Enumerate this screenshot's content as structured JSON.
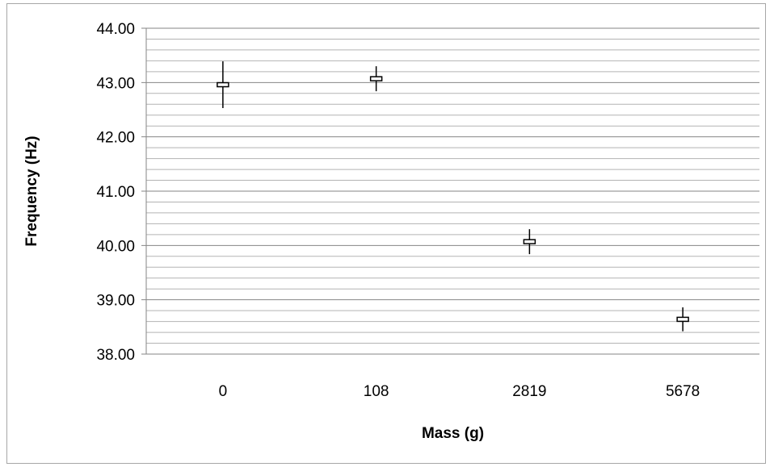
{
  "chart_data": {
    "type": "scatter",
    "title": "",
    "xlabel": "Mass (g)",
    "ylabel": "Frequency (Hz)",
    "categories": [
      "0",
      "108",
      "2819",
      "5678"
    ],
    "series": [
      {
        "values": [
          42.96,
          43.07,
          40.07,
          38.64
        ],
        "error_plus": [
          0.43,
          0.23,
          0.23,
          0.22
        ],
        "error_minus": [
          0.43,
          0.23,
          0.23,
          0.22
        ]
      }
    ],
    "ylim": [
      38.0,
      44.0
    ],
    "yticks": [
      "38.00",
      "39.00",
      "40.00",
      "41.00",
      "42.00",
      "43.00",
      "44.00"
    ],
    "ytick_values": [
      38,
      39,
      40,
      41,
      42,
      43,
      44
    ],
    "minor_step": 0.2,
    "grid": true,
    "legend": "none",
    "colors": {
      "marker": "#000000",
      "major_grid": "#868686",
      "minor_grid": "#b3b3b3",
      "frame": "#a6a6a6"
    }
  }
}
